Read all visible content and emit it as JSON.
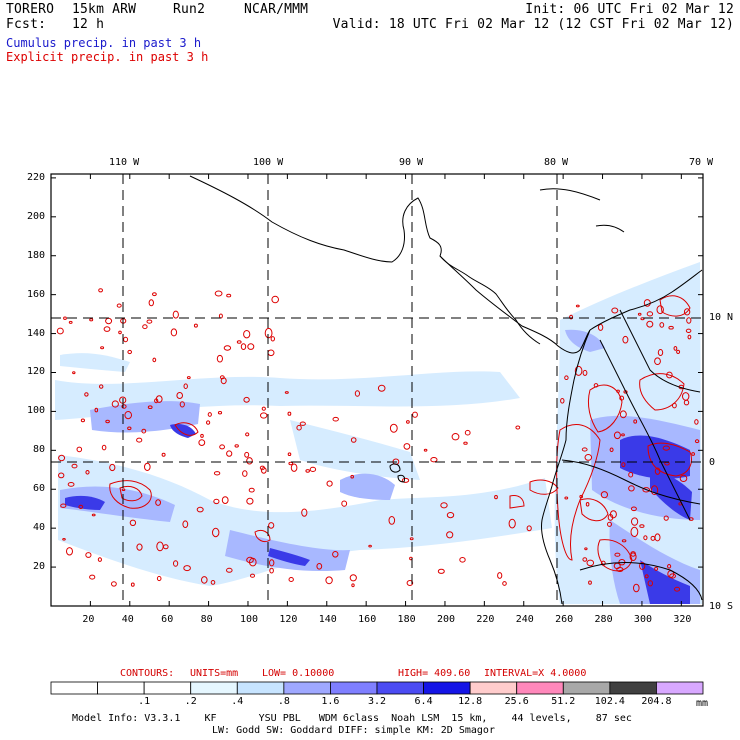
{
  "header": {
    "model_name": "TORERO",
    "resolution": "15km ARW",
    "run": "Run2",
    "center": "NCAR/MMM",
    "init": "Init: 06 UTC Fri 02 Mar 12",
    "fcst_label": "Fcst:",
    "fcst_value": "12 h",
    "valid": "Valid: 18 UTC Fri 02 Mar 12 (12 CST Fri 02 Mar 12)"
  },
  "legend": {
    "cumulus": "Cumulus precip. in past 3 h",
    "explicit": "Explicit precip. in past 3 h",
    "cumulus_color": "#1a1acc",
    "explicit_color": "#dd0000"
  },
  "map": {
    "lon_labels": [
      "110 W",
      "100 W",
      "90 W",
      "80 W",
      "70 W"
    ],
    "lat_labels": [
      "10 N",
      "0",
      "10 S"
    ],
    "x_ticks": [
      "20",
      "40",
      "60",
      "80",
      "100",
      "120",
      "140",
      "160",
      "180",
      "200",
      "220",
      "240",
      "260",
      "280",
      "300",
      "320"
    ],
    "y_ticks": [
      "20",
      "40",
      "60",
      "80",
      "100",
      "120",
      "140",
      "160",
      "180",
      "200",
      "220"
    ]
  },
  "contours": {
    "label": "CONTOURS:",
    "units": "UNITS=mm",
    "low": "LOW= 0.10000",
    "high": "HIGH= 409.60",
    "interval": "INTERVAL=X 4.0000"
  },
  "colorbar": {
    "labels": [
      ".1",
      ".2",
      ".4",
      ".8",
      "1.6",
      "3.2",
      "6.4",
      "12.8",
      "25.6",
      "51.2",
      "102.4",
      "204.8"
    ],
    "colors": [
      "#ffffff",
      "#ffffff",
      "#ffffff",
      "#e6f7ff",
      "#c7e4ff",
      "#9fa8ff",
      "#7f7fff",
      "#4b4bf2",
      "#1414e6",
      "#ffcccc",
      "#ff88bb",
      "#a8a8a8",
      "#404040",
      "#d8a8ff"
    ],
    "unit": "mm"
  },
  "model_info": {
    "line1": "Model Info: V3.3.1    KF       YSU PBL   WDM 6class  Noah LSM  15 km,    44 levels,    87 sec",
    "line2": "LW: Godd SW: Goddard DIFF: simple KM: 2D Smagor"
  }
}
